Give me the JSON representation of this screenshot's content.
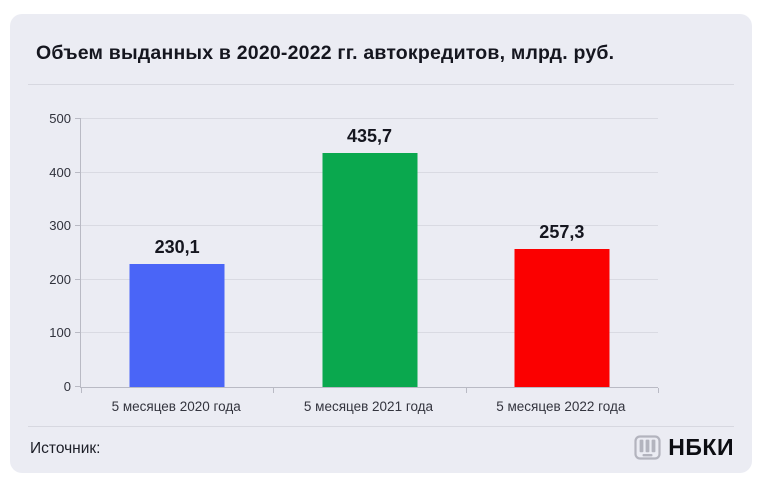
{
  "card": {
    "title": "Объем выданных в 2020-2022 гг. автокредитов, млрд. руб.",
    "footer": {
      "source_label": "Источник:",
      "logo_text": "НБКИ"
    }
  },
  "colors": {
    "page_bg": "#ffffff",
    "card_bg": "#ebecf3",
    "title_text": "#15161f",
    "grid_line": "#d9dae2",
    "axis_line": "#b9bac4",
    "tick_label": "#30323c",
    "value_label": "#15161f",
    "divider": "#d7d8e0",
    "logo_gray": "#b3b4be"
  },
  "chart_data": {
    "type": "bar",
    "title": "Объем выданных в 2020-2022 гг. автокредитов, млрд. руб.",
    "categories": [
      "5 месяцев 2020 года",
      "5 месяцев 2021 года",
      "5 месяцев 2022 года"
    ],
    "values": [
      230.1,
      435.7,
      257.3
    ],
    "value_labels": [
      "230,1",
      "435,7",
      "257,3"
    ],
    "bar_colors": [
      "#4a65f7",
      "#0aa84e",
      "#fb0000"
    ],
    "xlabel": "",
    "ylabel": "",
    "ylim": [
      0,
      500
    ],
    "yticks": [
      0,
      100,
      200,
      300,
      400,
      500
    ],
    "grid": "horizontal",
    "legend": "none"
  }
}
